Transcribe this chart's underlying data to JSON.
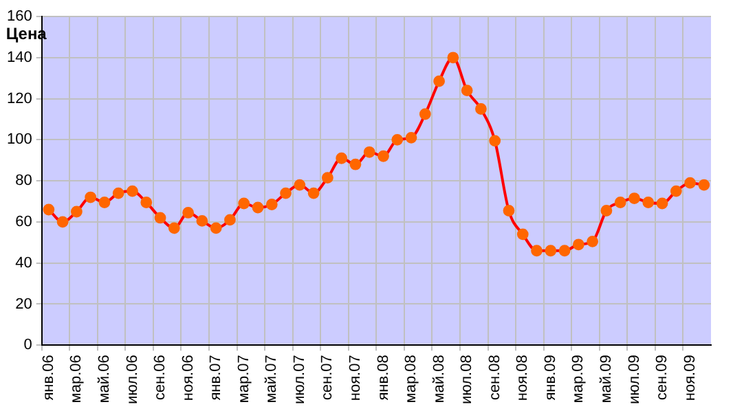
{
  "chart_data": {
    "type": "line",
    "ylabel": "Цена",
    "categories": [
      "янв.06",
      null,
      "мар.06",
      null,
      "май.06",
      null,
      "июл.06",
      null,
      "сен.06",
      null,
      "ноя.06",
      null,
      "янв.07",
      null,
      "мар.07",
      null,
      "май.07",
      null,
      "июл.07",
      null,
      "сен.07",
      null,
      "ноя.07",
      null,
      "янв.08",
      null,
      "мар.08",
      null,
      "май.08",
      null,
      "июл.08",
      null,
      "сен.08",
      null,
      "ноя.08",
      null,
      "янв.09",
      null,
      "мар.09",
      null,
      "май.09",
      null,
      "июл.09",
      null,
      "сен.09",
      null,
      "ноя.09",
      null
    ],
    "series": [
      {
        "color": "#ff0000",
        "values": [
          66,
          60,
          65,
          72,
          69.5,
          74,
          75,
          69.5,
          62,
          57,
          64.5,
          60.5,
          57,
          61,
          69,
          67,
          68.5,
          74,
          78,
          74,
          81.5,
          91,
          88,
          94,
          92,
          100,
          101,
          112.5,
          128.5,
          140,
          124,
          115,
          99.5,
          65.5,
          54,
          46,
          46,
          46,
          49,
          50.5,
          65.5,
          69.5,
          71.5,
          69.5,
          69,
          75,
          79,
          78
        ]
      }
    ],
    "ylim": [
      0,
      160
    ],
    "yticks": [
      0,
      20,
      40,
      60,
      80,
      100,
      120,
      140,
      160
    ],
    "grid": true,
    "legend": false,
    "marker": "circle",
    "line_style": "solid"
  }
}
